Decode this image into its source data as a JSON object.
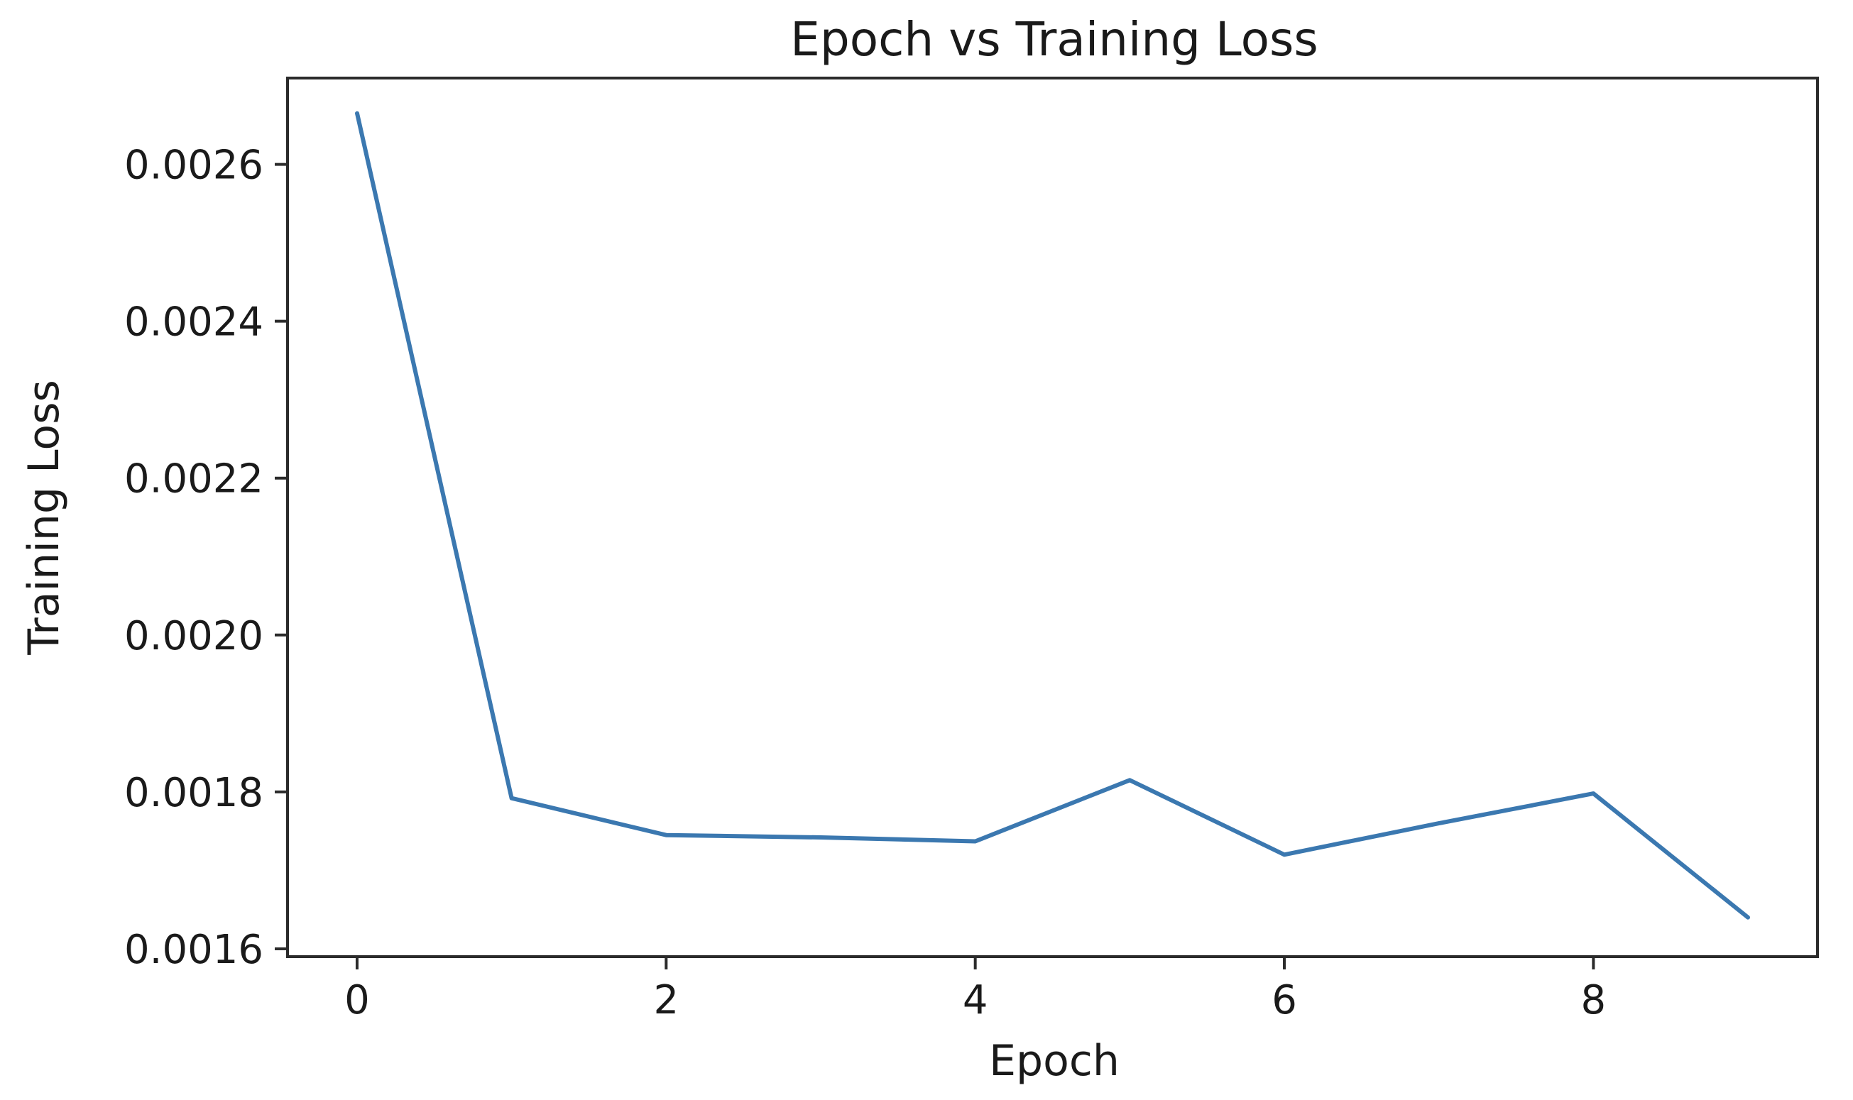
{
  "chart_data": {
    "type": "line",
    "title": "Epoch vs Training Loss",
    "xlabel": "Epoch",
    "ylabel": "Training Loss",
    "xlim": [
      -0.45,
      9.45
    ],
    "ylim": [
      0.00159,
      0.00271
    ],
    "xticks": [
      0,
      2,
      4,
      6,
      8
    ],
    "xtick_labels": [
      "0",
      "2",
      "4",
      "6",
      "8"
    ],
    "yticks": [
      0.0016,
      0.0018,
      0.002,
      0.0022,
      0.0024,
      0.0026
    ],
    "ytick_labels": [
      "0.0016",
      "0.0018",
      "0.0020",
      "0.0022",
      "0.0024",
      "0.0026"
    ],
    "grid": false,
    "series": [
      {
        "color": "#3b78b0",
        "x": [
          0,
          1,
          2,
          3,
          4,
          5,
          6,
          7,
          8,
          9
        ],
        "y": [
          0.002665,
          0.001792,
          0.001745,
          0.001742,
          0.001737,
          0.001815,
          0.00172,
          0.00176,
          0.001798,
          0.00164
        ]
      }
    ]
  }
}
